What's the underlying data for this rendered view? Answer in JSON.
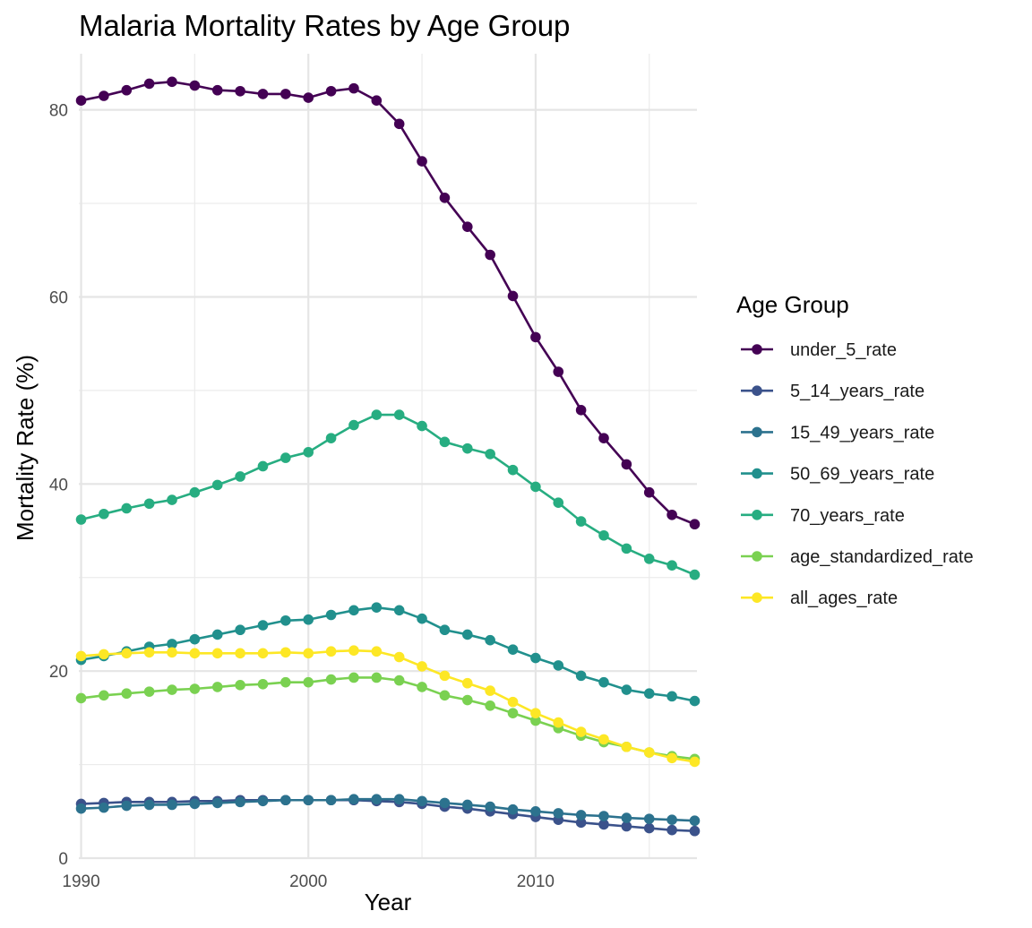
{
  "chart_data": {
    "type": "line",
    "title": "Malaria Mortality Rates by Age Group",
    "xlabel": "Year",
    "ylabel": "Mortality Rate (%)",
    "xlim": [
      1989.9,
      2017.1
    ],
    "ylim": [
      0,
      86
    ],
    "x_ticks": [
      1990,
      2000,
      2010
    ],
    "y_ticks": [
      0,
      20,
      40,
      60,
      80
    ],
    "grid": true,
    "legend": {
      "title": "Age Group",
      "position": "right"
    },
    "x": [
      1990,
      1991,
      1992,
      1993,
      1994,
      1995,
      1996,
      1997,
      1998,
      1999,
      2000,
      2001,
      2002,
      2003,
      2004,
      2005,
      2006,
      2007,
      2008,
      2009,
      2010,
      2011,
      2012,
      2013,
      2014,
      2015,
      2016,
      2017
    ],
    "series": [
      {
        "name": "under_5_rate",
        "color": "#440154",
        "values": [
          81.0,
          81.5,
          82.1,
          82.8,
          83.0,
          82.6,
          82.1,
          82.0,
          81.7,
          81.7,
          81.3,
          82.0,
          82.3,
          81.0,
          78.5,
          74.5,
          70.6,
          67.5,
          64.5,
          60.1,
          55.7,
          52.0,
          47.9,
          44.9,
          42.1,
          39.1,
          36.7,
          35.7
        ]
      },
      {
        "name": "5_14_years_rate",
        "color": "#3b528b",
        "values": [
          5.8,
          5.9,
          6.0,
          6.0,
          6.0,
          6.1,
          6.1,
          6.2,
          6.2,
          6.2,
          6.2,
          6.2,
          6.2,
          6.1,
          6.0,
          5.8,
          5.5,
          5.3,
          5.0,
          4.7,
          4.4,
          4.1,
          3.8,
          3.6,
          3.4,
          3.2,
          3.0,
          2.9
        ]
      },
      {
        "name": "15_49_years_rate",
        "color": "#2c728e",
        "values": [
          5.3,
          5.4,
          5.6,
          5.7,
          5.7,
          5.8,
          5.9,
          6.0,
          6.1,
          6.2,
          6.2,
          6.2,
          6.3,
          6.3,
          6.3,
          6.1,
          5.9,
          5.7,
          5.5,
          5.2,
          5.0,
          4.8,
          4.6,
          4.5,
          4.3,
          4.2,
          4.1,
          4.0
        ]
      },
      {
        "name": "50_69_years_rate",
        "color": "#21908d",
        "values": [
          21.2,
          21.6,
          22.1,
          22.6,
          22.9,
          23.4,
          23.9,
          24.4,
          24.9,
          25.4,
          25.5,
          26.0,
          26.5,
          26.8,
          26.5,
          25.6,
          24.4,
          23.9,
          23.3,
          22.3,
          21.4,
          20.6,
          19.5,
          18.8,
          18.0,
          17.6,
          17.3,
          16.8
        ]
      },
      {
        "name": "70_years_rate",
        "color": "#27ad81",
        "values": [
          36.2,
          36.8,
          37.4,
          37.9,
          38.3,
          39.1,
          39.9,
          40.8,
          41.9,
          42.8,
          43.4,
          44.9,
          46.3,
          47.4,
          47.4,
          46.2,
          44.5,
          43.8,
          43.2,
          41.5,
          39.7,
          38.0,
          36.0,
          34.5,
          33.1,
          32.0,
          31.3,
          30.3
        ]
      },
      {
        "name": "age_standardized_rate",
        "color": "#7ad151",
        "values": [
          17.1,
          17.4,
          17.6,
          17.8,
          18.0,
          18.1,
          18.3,
          18.5,
          18.6,
          18.8,
          18.8,
          19.1,
          19.3,
          19.3,
          19.0,
          18.3,
          17.4,
          16.9,
          16.3,
          15.5,
          14.7,
          13.9,
          13.1,
          12.4,
          11.9,
          11.3,
          10.9,
          10.6
        ]
      },
      {
        "name": "all_ages_rate",
        "color": "#fde725",
        "values": [
          21.6,
          21.8,
          21.9,
          22.0,
          22.0,
          21.9,
          21.9,
          21.9,
          21.9,
          22.0,
          21.9,
          22.1,
          22.2,
          22.1,
          21.5,
          20.5,
          19.5,
          18.7,
          17.9,
          16.7,
          15.5,
          14.5,
          13.5,
          12.7,
          11.9,
          11.3,
          10.7,
          10.3
        ]
      }
    ]
  }
}
